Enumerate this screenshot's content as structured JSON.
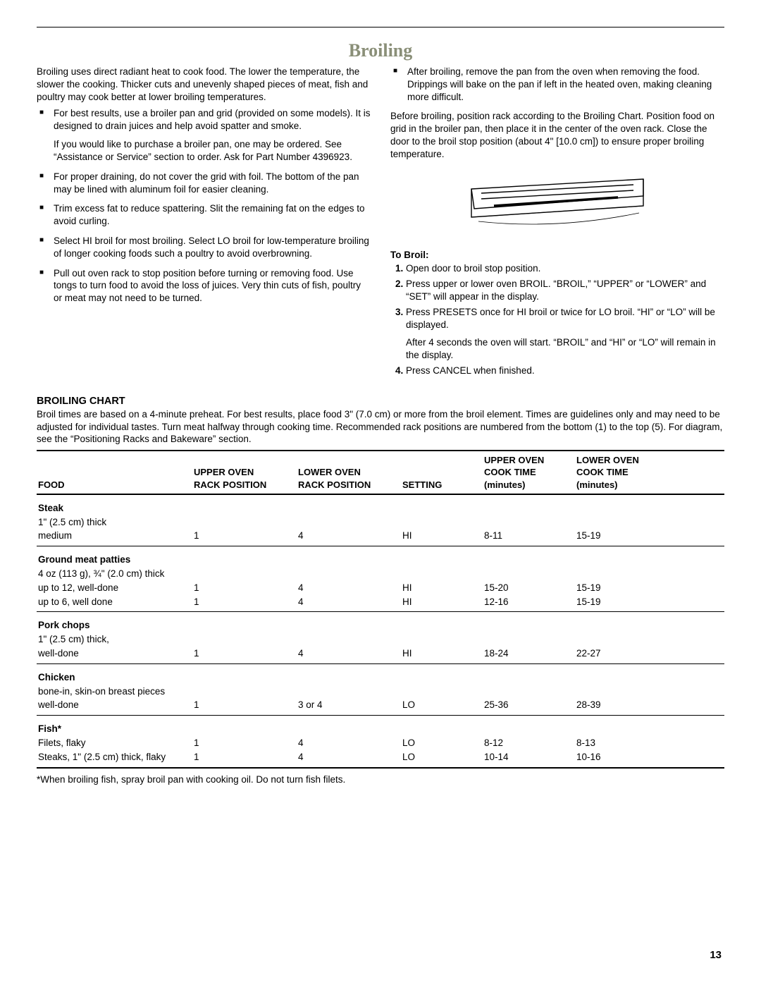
{
  "title": "Broiling",
  "page_number": "13",
  "left_column": {
    "intro": "Broiling uses direct radiant heat to cook food. The lower the temperature, the slower the cooking. Thicker cuts and unevenly shaped pieces of meat, fish and poultry may cook better at lower broiling temperatures.",
    "bullets": [
      {
        "text": "For best results, use a broiler pan and grid (provided on some models). It is designed to drain juices and help avoid spatter and smoke.",
        "sub": "If you would like to purchase a broiler pan, one may be ordered. See “Assistance or Service” section to order. Ask for Part Number 4396923."
      },
      {
        "text": "For proper draining, do not cover the grid with foil. The bottom of the pan may be lined with aluminum foil for easier cleaning."
      },
      {
        "text": "Trim excess fat to reduce spattering. Slit the remaining fat on the edges to avoid curling."
      },
      {
        "text": "Select HI broil for most broiling. Select LO broil for low-temperature broiling of longer cooking foods such a poultry to avoid overbrowning."
      },
      {
        "text": "Pull out oven rack to stop position before turning or removing food. Use tongs to turn food to avoid the loss of juices. Very thin cuts of fish, poultry or meat may not need to be turned."
      }
    ]
  },
  "right_column": {
    "after_bullet": "After broiling, remove the pan from the oven when removing the food. Drippings will bake on the pan if left in the heated oven, making cleaning more difficult.",
    "before_broiling": "Before broiling, position rack according to the Broiling Chart. Position food on grid in the broiler pan, then place it in the center of the oven rack. Close the door to the broil stop position (about 4\" [10.0 cm]) to ensure proper broiling temperature.",
    "to_broil_heading": "To Broil:",
    "steps": [
      {
        "text": "Open door to broil stop position."
      },
      {
        "text": "Press upper or lower oven BROIL. “BROIL,” “UPPER” or “LOWER” and “SET” will appear in the display."
      },
      {
        "text": "Press PRESETS once for HI broil or twice for LO broil. “HI” or “LO” will be displayed.",
        "sub": "After 4 seconds the oven will start. “BROIL” and “HI” or “LO” will remain in the display."
      },
      {
        "text": "Press CANCEL when finished."
      }
    ]
  },
  "chart": {
    "heading": "BROILING CHART",
    "intro": "Broil times are based on a 4-minute preheat. For best results, place food 3\" (7.0 cm) or more from the broil element. Times are guidelines only and may need to be adjusted for individual tastes. Turn meat halfway through cooking time. Recommended rack positions are numbered from the bottom (1) to the top (5). For diagram, see the “Positioning Racks and Bakeware” section.",
    "columns": {
      "food": "FOOD",
      "upper_rack_1": "UPPER OVEN",
      "upper_rack_2": "RACK POSITION",
      "lower_rack_1": "LOWER OVEN",
      "lower_rack_2": "RACK POSITION",
      "setting": "SETTING",
      "upper_time_1": "UPPER OVEN",
      "upper_time_2": "COOK TIME",
      "upper_time_3": "(minutes)",
      "lower_time_1": "LOWER OVEN",
      "lower_time_2": "COOK TIME",
      "lower_time_3": "(minutes)"
    },
    "sections": [
      {
        "title": "Steak",
        "desc": "1\" (2.5 cm) thick",
        "rows": [
          {
            "label": "medium",
            "ur": "1",
            "lr": "4",
            "set": "HI",
            "ut": "8-11",
            "lt": "15-19"
          }
        ]
      },
      {
        "title": "Ground meat patties",
        "desc": "4 oz (113 g), ¾\" (2.0 cm) thick",
        "rows": [
          {
            "label": "up to 12, well-done",
            "ur": "1",
            "lr": "4",
            "set": "HI",
            "ut": "15-20",
            "lt": "15-19"
          },
          {
            "label": "up to 6, well done",
            "ur": "1",
            "lr": "4",
            "set": "HI",
            "ut": "12-16",
            "lt": "15-19"
          }
        ]
      },
      {
        "title": "Pork chops",
        "desc": "1\" (2.5 cm) thick,",
        "rows": [
          {
            "label": "well-done",
            "ur": "1",
            "lr": "4",
            "set": "HI",
            "ut": "18-24",
            "lt": "22-27"
          }
        ]
      },
      {
        "title": "Chicken",
        "desc": "bone-in, skin-on breast pieces",
        "rows": [
          {
            "label": "well-done",
            "ur": "1",
            "lr": "3 or 4",
            "set": "LO",
            "ut": "25-36",
            "lt": "28-39"
          }
        ]
      },
      {
        "title": "Fish*",
        "desc": "",
        "rows": [
          {
            "label": "Filets, flaky",
            "ur": "1",
            "lr": "4",
            "set": "LO",
            "ut": "8-12",
            "lt": "8-13"
          },
          {
            "label": "Steaks, 1\" (2.5 cm) thick, flaky",
            "ur": "1",
            "lr": "4",
            "set": "LO",
            "ut": "10-14",
            "lt": "10-16"
          }
        ]
      }
    ],
    "footnote": "*When broiling fish, spray broil pan with cooking oil. Do not turn fish filets."
  }
}
